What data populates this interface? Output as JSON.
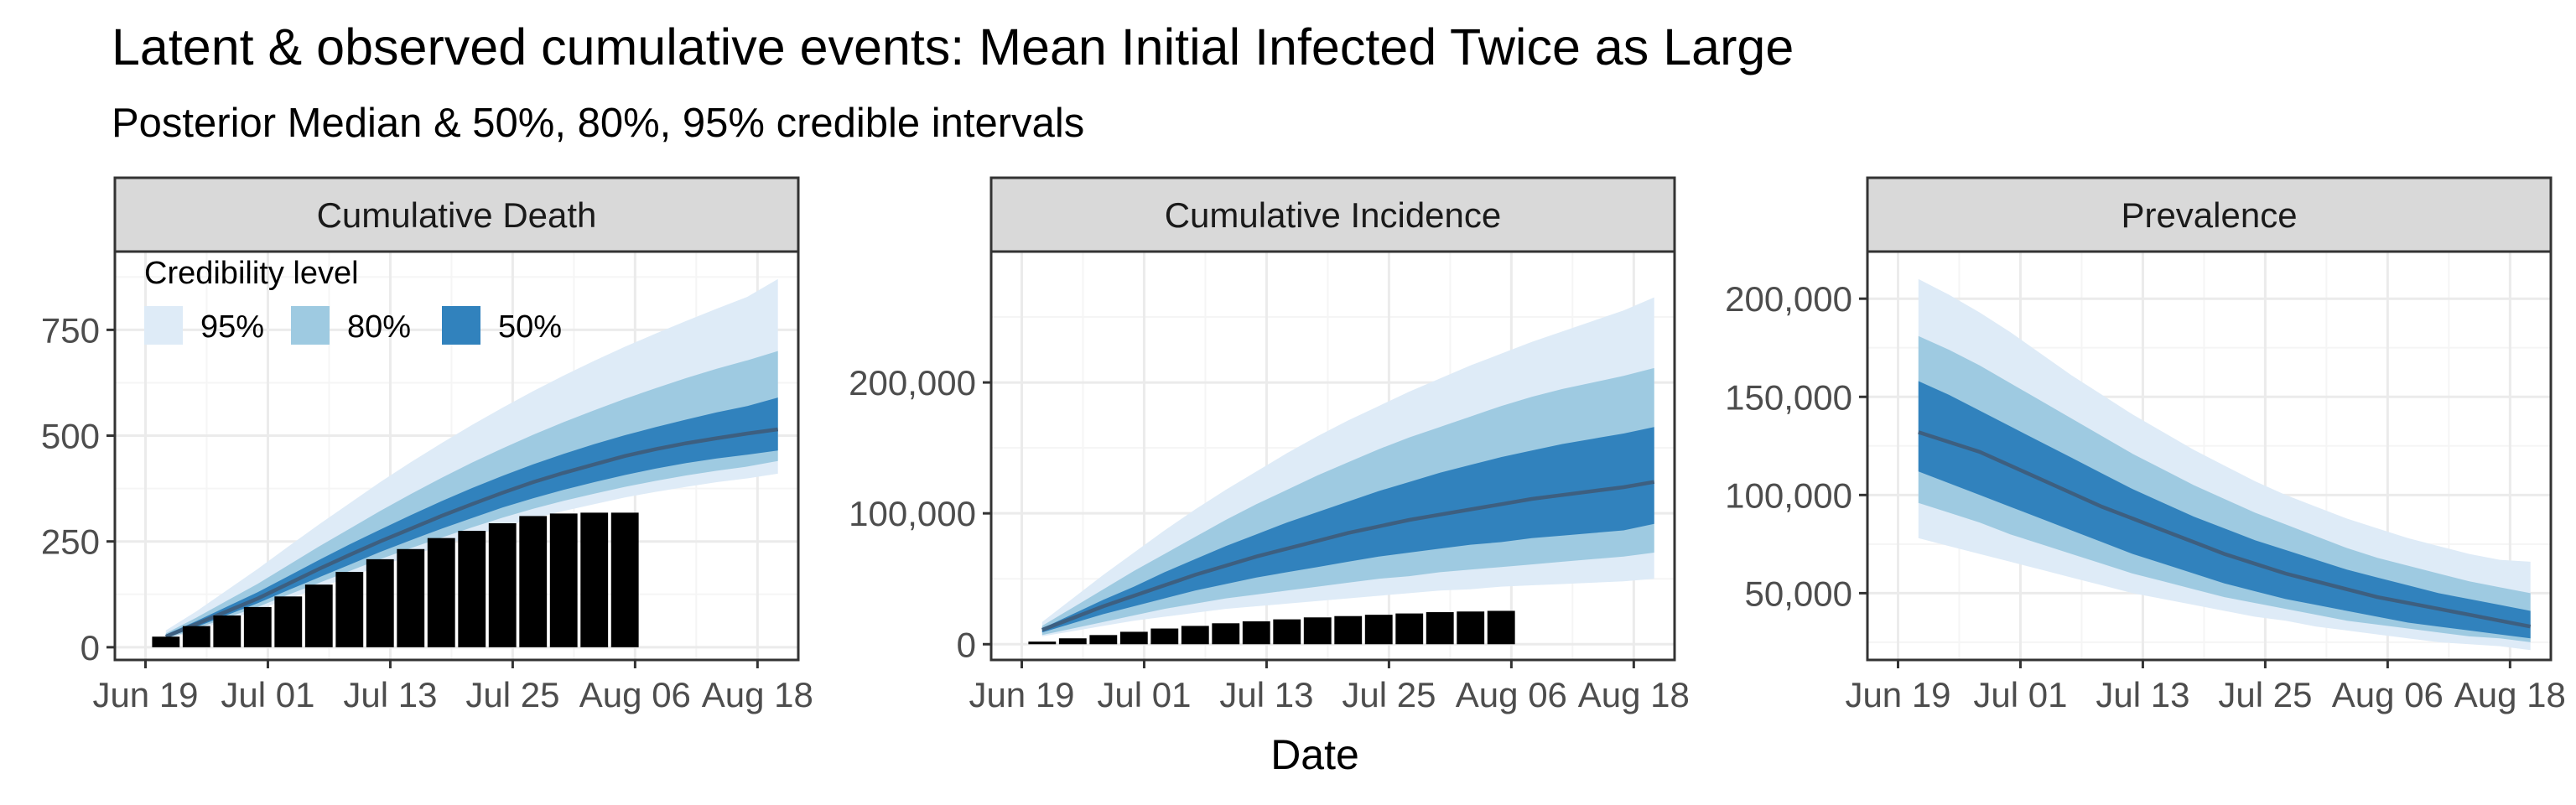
{
  "title": "Latent & observed cumulative events: Mean Initial Infected Twice as Large",
  "subtitle": "Posterior Median & 50%, 80%, 95% credible intervals",
  "xlabel": "Date",
  "colors": {
    "band95": "#deebf7",
    "band80": "#9ecae1",
    "band50": "#3182bd",
    "median": "#3d5f80",
    "observed": "#000000",
    "strip_bg": "#d9d9d9",
    "panel_border": "#333333",
    "grid_major": "#ebebeb",
    "grid_minor": "#f5f5f5"
  },
  "legend": {
    "title": "Credibility level",
    "items": [
      {
        "label": "95%",
        "color": "#deebf7"
      },
      {
        "label": "80%",
        "color": "#9ecae1"
      },
      {
        "label": "50%",
        "color": "#3182bd"
      }
    ]
  },
  "chart_data": [
    {
      "type": "area",
      "panel": "Cumulative Death",
      "xlim": [
        "2020-06-16",
        "2020-08-22"
      ],
      "x_ticks": [
        "2020-06-19",
        "2020-07-01",
        "2020-07-13",
        "2020-07-25",
        "2020-08-06",
        "2020-08-18"
      ],
      "x_tick_labels": [
        "Jun 19",
        "Jul 01",
        "Jul 13",
        "Jul 25",
        "Aug 06",
        "Aug 18"
      ],
      "ylim": [
        -30,
        935
      ],
      "y_ticks": [
        0,
        250,
        500,
        750
      ],
      "y_tick_labels": [
        "0",
        "250",
        "500",
        "750"
      ],
      "x": [
        "2020-06-21",
        "2020-06-24",
        "2020-06-27",
        "2020-06-30",
        "2020-07-03",
        "2020-07-06",
        "2020-07-09",
        "2020-07-12",
        "2020-07-15",
        "2020-07-18",
        "2020-07-21",
        "2020-07-24",
        "2020-07-27",
        "2020-07-30",
        "2020-08-02",
        "2020-08-05",
        "2020-08-08",
        "2020-08-11",
        "2020-08-14",
        "2020-08-17",
        "2020-08-20"
      ],
      "median": [
        25,
        55,
        85,
        115,
        150,
        185,
        218,
        250,
        280,
        310,
        338,
        365,
        390,
        412,
        432,
        452,
        468,
        482,
        494,
        505,
        515
      ],
      "band50": {
        "lower": [
          22,
          48,
          76,
          104,
          135,
          165,
          195,
          225,
          253,
          280,
          305,
          330,
          352,
          372,
          390,
          407,
          422,
          435,
          446,
          455,
          465
        ],
        "upper": [
          30,
          62,
          96,
          130,
          168,
          206,
          243,
          278,
          312,
          345,
          376,
          405,
          432,
          457,
          480,
          501,
          520,
          538,
          555,
          570,
          590
        ]
      },
      "band80": {
        "lower": [
          20,
          44,
          70,
          95,
          124,
          152,
          180,
          208,
          234,
          259,
          283,
          306,
          327,
          346,
          363,
          379,
          393,
          406,
          417,
          427,
          440
        ],
        "upper": [
          33,
          70,
          110,
          150,
          194,
          238,
          280,
          322,
          362,
          400,
          436,
          470,
          502,
          532,
          560,
          587,
          612,
          636,
          658,
          678,
          700
        ]
      },
      "band95": {
        "lower": [
          18,
          40,
          64,
          88,
          114,
          140,
          166,
          192,
          216,
          240,
          262,
          284,
          304,
          322,
          338,
          354,
          367,
          379,
          390,
          399,
          410
        ],
        "upper": [
          40,
          85,
          135,
          185,
          238,
          290,
          340,
          390,
          437,
          482,
          525,
          566,
          605,
          642,
          677,
          710,
          741,
          771,
          800,
          828,
          870
        ]
      },
      "observed": {
        "x": [
          "2020-06-21",
          "2020-06-24",
          "2020-06-27",
          "2020-06-30",
          "2020-07-03",
          "2020-07-06",
          "2020-07-09",
          "2020-07-12",
          "2020-07-15",
          "2020-07-18",
          "2020-07-21",
          "2020-07-24",
          "2020-07-27",
          "2020-07-30",
          "2020-08-02",
          "2020-08-05"
        ],
        "values": [
          25,
          50,
          75,
          95,
          120,
          148,
          178,
          208,
          232,
          258,
          275,
          293,
          310,
          316,
          318,
          318
        ]
      }
    },
    {
      "type": "area",
      "panel": "Cumulative Incidence",
      "xlim": [
        "2020-06-16",
        "2020-08-22"
      ],
      "x_ticks": [
        "2020-06-19",
        "2020-07-01",
        "2020-07-13",
        "2020-07-25",
        "2020-08-06",
        "2020-08-18"
      ],
      "x_tick_labels": [
        "Jun 19",
        "Jul 01",
        "Jul 13",
        "Jul 25",
        "Aug 06",
        "Aug 18"
      ],
      "ylim": [
        -12000,
        300000
      ],
      "y_ticks": [
        0,
        100000,
        200000
      ],
      "y_tick_labels": [
        "0",
        "100,000",
        "200,000"
      ],
      "x": [
        "2020-06-21",
        "2020-06-24",
        "2020-06-27",
        "2020-06-30",
        "2020-07-03",
        "2020-07-06",
        "2020-07-09",
        "2020-07-12",
        "2020-07-15",
        "2020-07-18",
        "2020-07-21",
        "2020-07-24",
        "2020-07-27",
        "2020-07-30",
        "2020-08-02",
        "2020-08-05",
        "2020-08-08",
        "2020-08-11",
        "2020-08-14",
        "2020-08-17",
        "2020-08-20"
      ],
      "median": [
        11000,
        20000,
        29000,
        37000,
        45000,
        53000,
        60000,
        67000,
        73000,
        79000,
        85000,
        90000,
        95000,
        99000,
        103000,
        107000,
        111000,
        114000,
        117000,
        120000,
        124000
      ],
      "band50": {
        "lower": [
          9000,
          16000,
          23000,
          29000,
          35000,
          41000,
          46000,
          51000,
          55000,
          59000,
          63000,
          67000,
          70000,
          73000,
          76000,
          78000,
          81000,
          83000,
          85000,
          87000,
          92000
        ],
        "upper": [
          12000,
          23000,
          34000,
          44000,
          55000,
          65000,
          75000,
          84000,
          93000,
          101000,
          109000,
          117000,
          124000,
          131000,
          137000,
          143000,
          148000,
          153000,
          157000,
          161000,
          166000
        ]
      },
      "band80": {
        "lower": [
          7000,
          12000,
          17000,
          22000,
          27000,
          31000,
          35000,
          38000,
          41000,
          44000,
          47000,
          50000,
          52000,
          55000,
          57000,
          59000,
          61000,
          63000,
          65000,
          67000,
          70000
        ],
        "upper": [
          14000,
          28000,
          42000,
          56000,
          69000,
          82000,
          95000,
          107000,
          118000,
          129000,
          139000,
          149000,
          158000,
          166000,
          174000,
          182000,
          189000,
          195000,
          200000,
          205000,
          211000
        ]
      },
      "band95": {
        "lower": [
          6000,
          10000,
          14000,
          18000,
          21000,
          24000,
          27000,
          29000,
          31000,
          33000,
          35000,
          37000,
          39000,
          41000,
          42000,
          44000,
          45000,
          46000,
          47000,
          48000,
          50000
        ],
        "upper": [
          17000,
          35000,
          53000,
          70000,
          87000,
          103000,
          118000,
          132000,
          146000,
          159000,
          171000,
          182000,
          193000,
          203000,
          213000,
          222000,
          231000,
          239000,
          247000,
          255000,
          265000
        ]
      },
      "observed": {
        "x": [
          "2020-06-21",
          "2020-06-24",
          "2020-06-27",
          "2020-06-30",
          "2020-07-03",
          "2020-07-06",
          "2020-07-09",
          "2020-07-12",
          "2020-07-15",
          "2020-07-18",
          "2020-07-21",
          "2020-07-24",
          "2020-07-27",
          "2020-07-30",
          "2020-08-02",
          "2020-08-05"
        ],
        "values": [
          2000,
          4500,
          7000,
          9500,
          12000,
          14000,
          16000,
          17500,
          19000,
          20500,
          21500,
          22500,
          23500,
          24500,
          25000,
          25500
        ]
      }
    },
    {
      "type": "area",
      "panel": "Prevalence",
      "xlim": [
        "2020-06-16",
        "2020-08-22"
      ],
      "x_ticks": [
        "2020-06-19",
        "2020-07-01",
        "2020-07-13",
        "2020-07-25",
        "2020-08-06",
        "2020-08-18"
      ],
      "x_tick_labels": [
        "Jun 19",
        "Jul 01",
        "Jul 13",
        "Jul 25",
        "Aug 06",
        "Aug 18"
      ],
      "ylim": [
        16000,
        224000
      ],
      "y_ticks": [
        50000,
        100000,
        150000,
        200000
      ],
      "y_tick_labels": [
        "50,000",
        "100,000",
        "150,000",
        "200,000"
      ],
      "x": [
        "2020-06-21",
        "2020-06-24",
        "2020-06-27",
        "2020-06-30",
        "2020-07-03",
        "2020-07-06",
        "2020-07-09",
        "2020-07-12",
        "2020-07-15",
        "2020-07-18",
        "2020-07-21",
        "2020-07-24",
        "2020-07-27",
        "2020-07-30",
        "2020-08-02",
        "2020-08-05",
        "2020-08-08",
        "2020-08-11",
        "2020-08-14",
        "2020-08-17",
        "2020-08-20"
      ],
      "median": [
        132000,
        127000,
        122000,
        115000,
        108000,
        101000,
        94000,
        88000,
        82000,
        76000,
        70000,
        65000,
        60000,
        56000,
        52000,
        48000,
        45000,
        42000,
        39000,
        36000,
        33000
      ],
      "band50": {
        "lower": [
          112000,
          106000,
          100000,
          94000,
          88000,
          82000,
          76000,
          70000,
          65000,
          60000,
          55000,
          51000,
          47000,
          44000,
          41000,
          38000,
          35000,
          33000,
          31000,
          29000,
          27000
        ],
        "upper": [
          158000,
          151000,
          143000,
          135000,
          127000,
          119000,
          111000,
          103000,
          96000,
          89000,
          83000,
          77000,
          72000,
          67000,
          62000,
          58000,
          54000,
          50000,
          47000,
          44000,
          41000
        ]
      },
      "band80": {
        "lower": [
          96000,
          91000,
          86000,
          80000,
          75000,
          70000,
          65000,
          60000,
          56000,
          52000,
          48000,
          45000,
          42000,
          39000,
          36000,
          34000,
          32000,
          30000,
          28000,
          27000,
          25000
        ],
        "upper": [
          181000,
          174000,
          166000,
          157000,
          148000,
          139000,
          130000,
          121000,
          113000,
          105000,
          98000,
          91000,
          85000,
          79000,
          73000,
          68000,
          64000,
          60000,
          56000,
          53000,
          50000
        ]
      },
      "band95": {
        "lower": [
          78000,
          74000,
          70000,
          66000,
          62000,
          58000,
          54000,
          50000,
          47000,
          44000,
          41000,
          38000,
          36000,
          33000,
          31000,
          29000,
          27000,
          25000,
          24000,
          23000,
          21000
        ],
        "upper": [
          210000,
          202000,
          193000,
          183000,
          172000,
          161000,
          151000,
          141000,
          132000,
          123000,
          115000,
          107000,
          100000,
          94000,
          88000,
          83000,
          78000,
          74000,
          70000,
          67000,
          66000
        ]
      }
    }
  ]
}
